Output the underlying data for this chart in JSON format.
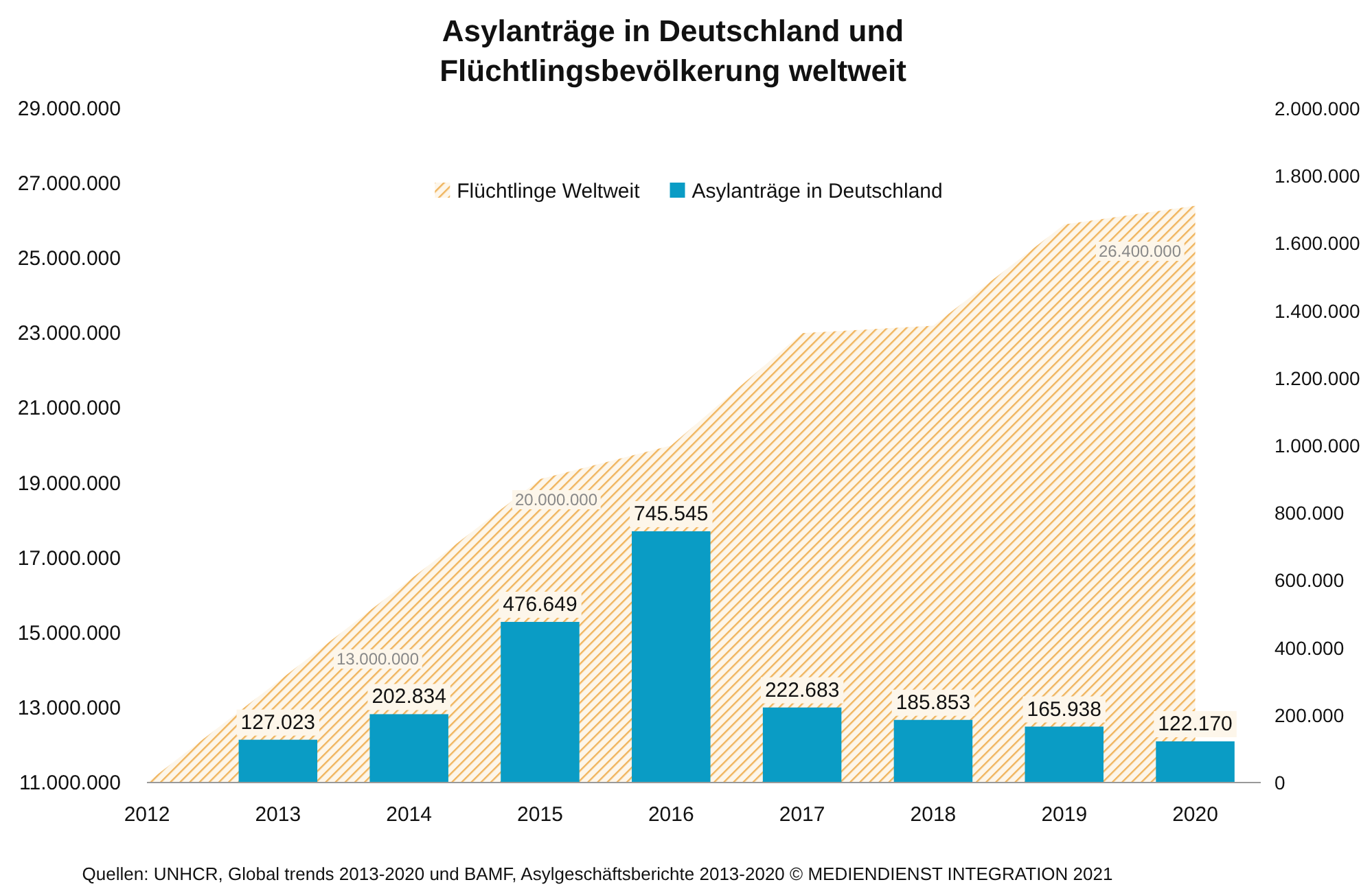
{
  "chart_data": {
    "type": "bar",
    "title": "Asylanträge in Deutschland und Flüchtlingsbevölkerung weltweit",
    "categories": [
      "2012",
      "2013",
      "2014",
      "2015",
      "2016",
      "2017",
      "2018",
      "2019",
      "2020"
    ],
    "series": [
      {
        "name": "Flüchtlinge Weltweit",
        "type": "area",
        "color": "#f0b45c",
        "values": [
          11000000,
          13700000,
          16400000,
          19100000,
          20000000,
          23000000,
          23200000,
          25900000,
          26400000
        ]
      },
      {
        "name": "Asylanträge in Deutschland",
        "axis": "y2",
        "color": "#0a9cc5",
        "values": [
          null,
          127023,
          202834,
          476649,
          745545,
          222683,
          185853,
          165938,
          122170
        ],
        "value_labels": [
          null,
          "127.023",
          "202.834",
          "476.649",
          "745.545",
          "222.683",
          "185.853",
          "165.938",
          "122.170"
        ]
      }
    ],
    "ylim": [
      11000000,
      29000000
    ],
    "yticks": [
      {
        "value": 11000000,
        "label": "11.000.000"
      },
      {
        "value": 13000000,
        "label": "13.000.000"
      },
      {
        "value": 15000000,
        "label": "15.000.000"
      },
      {
        "value": 17000000,
        "label": "17.000.000"
      },
      {
        "value": 19000000,
        "label": "19.000.000"
      },
      {
        "value": 21000000,
        "label": "21.000.000"
      },
      {
        "value": 23000000,
        "label": "23.000.000"
      },
      {
        "value": 25000000,
        "label": "25.000.000"
      },
      {
        "value": 27000000,
        "label": "27.000.000"
      },
      {
        "value": 29000000,
        "label": "29.000.000"
      }
    ],
    "y2lim": [
      0,
      2000000
    ],
    "y2ticks": [
      0,
      {
        "value": 200000,
        "label": "200.000"
      },
      {
        "value": 400000,
        "label": "400.000"
      },
      {
        "value": 600000,
        "label": "600.000"
      },
      {
        "value": 800000,
        "label": "800.000"
      },
      {
        "value": 1000000,
        "label": "1.000.000"
      },
      {
        "value": 1200000,
        "label": "1.200.000"
      },
      {
        "value": 1400000,
        "label": "1.400.000"
      },
      {
        "value": 1600000,
        "label": "1.600.000"
      },
      {
        "value": 1800000,
        "label": "1.800.000"
      },
      {
        "value": 2000000,
        "label": "2.000.000"
      }
    ],
    "legend": "top",
    "annotations": [
      "13.000.000",
      "20.000.000",
      "26.400.000",
      "Quellen: UNHCR, Global trends 2013-2020 und BAMF, Asylgeschäftsberichte 2013-2020 © MEDIENDIENST INTEGRATION 2021"
    ]
  }
}
